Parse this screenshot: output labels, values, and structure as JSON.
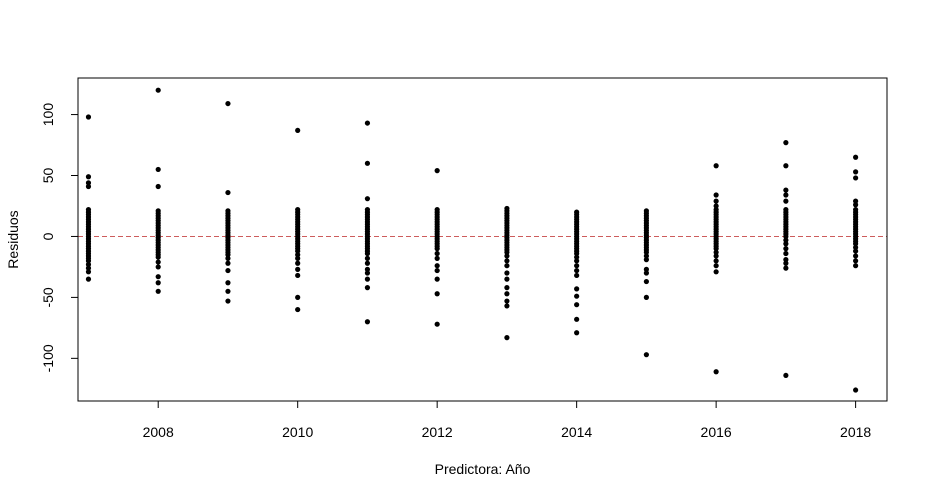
{
  "chart_data": {
    "type": "scatter",
    "title": "",
    "xlabel": "Predictora: Año",
    "ylabel": "Residuos",
    "xlim": [
      2006.85,
      2018.45
    ],
    "ylim": [
      -135,
      130
    ],
    "xticks": [
      2008,
      2010,
      2012,
      2014,
      2016,
      2018
    ],
    "yticks": [
      -100,
      -50,
      0,
      50,
      100
    ],
    "reference_line": {
      "y": 0,
      "color": "#cd5c5c",
      "style": "dashed"
    },
    "point_color": "#000000",
    "series": [
      {
        "x": 2007,
        "y": [
          98,
          49,
          44,
          41,
          22,
          20,
          18,
          16,
          14,
          12,
          10,
          8,
          6,
          4,
          2,
          0,
          -2,
          -4,
          -6,
          -8,
          -10,
          -12,
          -14,
          -16,
          -18,
          -20,
          -23,
          -26,
          -29,
          -35
        ]
      },
      {
        "x": 2008,
        "y": [
          120,
          55,
          41,
          21,
          19,
          17,
          15,
          13,
          11,
          9,
          7,
          5,
          3,
          1,
          -1,
          -3,
          -5,
          -7,
          -9,
          -11,
          -13,
          -15,
          -17,
          -21,
          -25,
          -33,
          -38,
          -45
        ]
      },
      {
        "x": 2009,
        "y": [
          109,
          36,
          21,
          19,
          17,
          15,
          13,
          11,
          9,
          7,
          5,
          3,
          1,
          -1,
          -3,
          -5,
          -7,
          -9,
          -11,
          -13,
          -15,
          -18,
          -22,
          -28,
          -38,
          -45,
          -53
        ]
      },
      {
        "x": 2010,
        "y": [
          87,
          22,
          20,
          18,
          16,
          14,
          12,
          10,
          8,
          6,
          4,
          2,
          0,
          -2,
          -4,
          -6,
          -8,
          -10,
          -12,
          -15,
          -18,
          -22,
          -27,
          -32,
          -50,
          -60
        ]
      },
      {
        "x": 2011,
        "y": [
          93,
          60,
          31,
          22,
          20,
          18,
          16,
          14,
          12,
          10,
          8,
          6,
          4,
          2,
          0,
          -2,
          -4,
          -6,
          -8,
          -10,
          -12,
          -14,
          -18,
          -22,
          -27,
          -30,
          -35,
          -42,
          -70
        ]
      },
      {
        "x": 2012,
        "y": [
          54,
          22,
          20,
          18,
          16,
          14,
          12,
          10,
          8,
          6,
          4,
          2,
          0,
          -2,
          -4,
          -6,
          -8,
          -10,
          -14,
          -18,
          -24,
          -28,
          -35,
          -47,
          -72
        ]
      },
      {
        "x": 2013,
        "y": [
          23,
          21,
          19,
          17,
          15,
          13,
          11,
          9,
          7,
          5,
          3,
          1,
          -1,
          -3,
          -5,
          -7,
          -9,
          -11,
          -13,
          -16,
          -20,
          -24,
          -30,
          -35,
          -42,
          -47,
          -53,
          -57,
          -83
        ]
      },
      {
        "x": 2014,
        "y": [
          20,
          18,
          16,
          14,
          12,
          10,
          8,
          6,
          4,
          2,
          0,
          -2,
          -4,
          -6,
          -8,
          -10,
          -12,
          -14,
          -17,
          -20,
          -24,
          -28,
          -32,
          -43,
          -49,
          -56,
          -68,
          -79
        ]
      },
      {
        "x": 2015,
        "y": [
          21,
          19,
          17,
          15,
          13,
          11,
          9,
          7,
          5,
          3,
          1,
          -1,
          -3,
          -5,
          -7,
          -9,
          -11,
          -13,
          -16,
          -19,
          -27,
          -30,
          -37,
          -50,
          -97
        ]
      },
      {
        "x": 2016,
        "y": [
          58,
          34,
          29,
          25,
          22,
          20,
          18,
          16,
          14,
          12,
          10,
          8,
          6,
          4,
          2,
          0,
          -2,
          -4,
          -6,
          -8,
          -10,
          -13,
          -16,
          -20,
          -24,
          -29,
          -111
        ]
      },
      {
        "x": 2017,
        "y": [
          77,
          58,
          38,
          34,
          29,
          22,
          20,
          18,
          16,
          14,
          12,
          10,
          8,
          6,
          4,
          2,
          0,
          -3,
          -6,
          -10,
          -14,
          -19,
          -22,
          -26,
          -114
        ]
      },
      {
        "x": 2018,
        "y": [
          65,
          53,
          48,
          29,
          26,
          22,
          20,
          18,
          16,
          14,
          12,
          10,
          8,
          6,
          4,
          2,
          0,
          -2,
          -4,
          -6,
          -9,
          -12,
          -16,
          -20,
          -24,
          -126
        ]
      }
    ]
  }
}
